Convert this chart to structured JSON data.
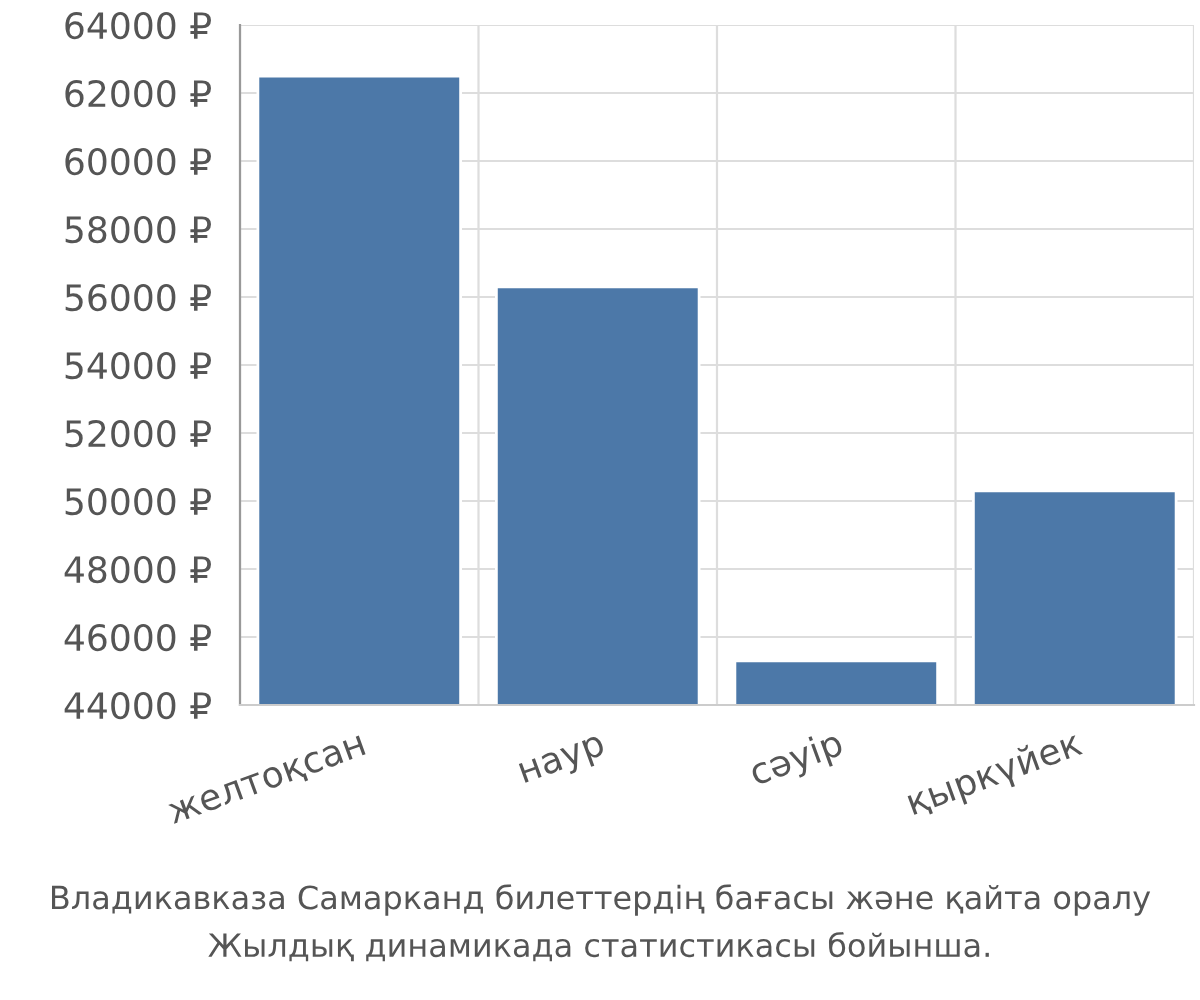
{
  "chart_data": {
    "type": "bar",
    "categories": [
      "желтоқсан",
      "наур",
      "сәуір",
      "қыркүйек"
    ],
    "values": [
      62500,
      56300,
      45300,
      50300
    ],
    "color": "#4c78a8",
    "ylim": [
      44000,
      64000
    ],
    "yticks": [
      {
        "value": 44000,
        "label": "44000 ₽"
      },
      {
        "value": 46000,
        "label": "46000 ₽"
      },
      {
        "value": 48000,
        "label": "48000 ₽"
      },
      {
        "value": 50000,
        "label": "50000 ₽"
      },
      {
        "value": 52000,
        "label": "52000 ₽"
      },
      {
        "value": 54000,
        "label": "54000 ₽"
      },
      {
        "value": 56000,
        "label": "56000 ₽"
      },
      {
        "value": 58000,
        "label": "58000 ₽"
      },
      {
        "value": 60000,
        "label": "60000 ₽"
      },
      {
        "value": 62000,
        "label": "62000 ₽"
      },
      {
        "value": 64000,
        "label": "64000 ₽"
      }
    ],
    "grid": true,
    "annotations": [
      "Владикавказа Самарканд билеттердің бағасы және қайта оралу",
      "Жылдық динамикада статистикасы бойынша."
    ]
  }
}
